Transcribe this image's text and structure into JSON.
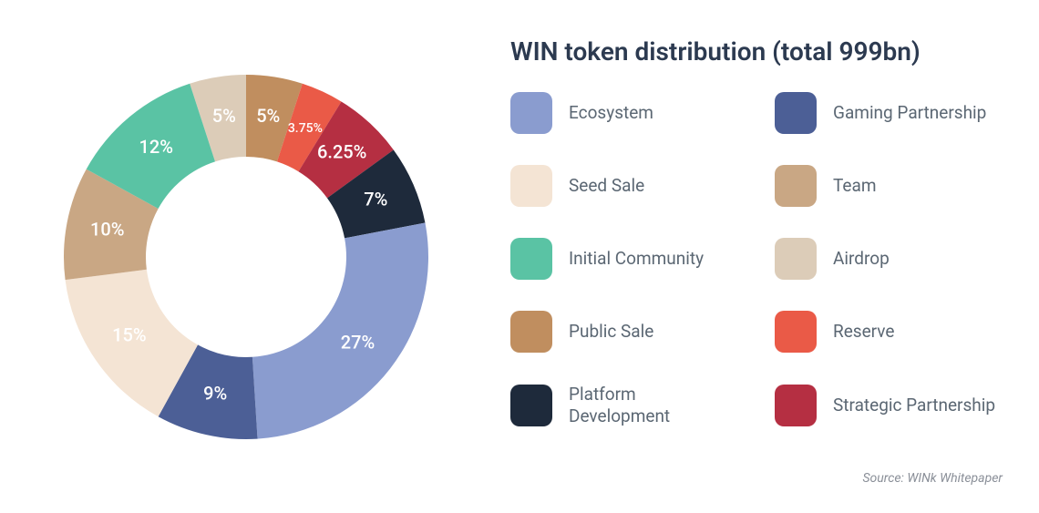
{
  "chart": {
    "type": "donut",
    "title": "WIN token distribution (total 999bn)",
    "title_color": "#2c3a50",
    "title_fontsize": 28,
    "background_color": "#ffffff",
    "outer_radius": 200,
    "inner_radius": 110,
    "label_color": "#ffffff",
    "label_fontsize": 20,
    "slices": [
      {
        "key": "airdrop",
        "value": 5,
        "label": "5%",
        "color": "#dcccb8",
        "label_small": false
      },
      {
        "key": "public_sale",
        "value": 5,
        "label": "5%",
        "color": "#c08e5f",
        "label_small": false
      },
      {
        "key": "reserve",
        "value": 3.75,
        "label": "3.75%",
        "color": "#ea5a47",
        "label_small": true
      },
      {
        "key": "strategic",
        "value": 6.25,
        "label": "6.25%",
        "color": "#b52f42",
        "label_small": false
      },
      {
        "key": "platform_dev",
        "value": 7,
        "label": "7%",
        "color": "#1e2a3b",
        "label_small": false
      },
      {
        "key": "ecosystem",
        "value": 27,
        "label": "27%",
        "color": "#8a9ccf",
        "label_small": false
      },
      {
        "key": "gaming",
        "value": 9,
        "label": "9%",
        "color": "#4c5f96",
        "label_small": false
      },
      {
        "key": "seed_sale",
        "value": 15,
        "label": "15%",
        "color": "#f4e4d4",
        "label_small": false
      },
      {
        "key": "team",
        "value": 10,
        "label": "10%",
        "color": "#c9a784",
        "label_small": false
      },
      {
        "key": "initial_comm",
        "value": 12,
        "label": "12%",
        "color": "#5ac3a4",
        "label_small": false
      }
    ],
    "start_angle_deg": -108
  },
  "legend": {
    "label_color": "#5b6773",
    "label_fontsize": 19,
    "swatch_size": 46,
    "swatch_radius": 10,
    "columns": 2,
    "items_left": [
      {
        "key": "ecosystem",
        "label": "Ecosystem",
        "color": "#8a9ccf"
      },
      {
        "key": "seed_sale",
        "label": "Seed Sale",
        "color": "#f4e4d4"
      },
      {
        "key": "initial_comm",
        "label": "Initial Community",
        "color": "#5ac3a4"
      },
      {
        "key": "public_sale",
        "label": "Public Sale",
        "color": "#c08e5f"
      },
      {
        "key": "platform_dev",
        "label": "Platform Development",
        "color": "#1e2a3b"
      }
    ],
    "items_right": [
      {
        "key": "gaming",
        "label": "Gaming Partnership",
        "color": "#4c5f96"
      },
      {
        "key": "team",
        "label": "Team",
        "color": "#c9a784"
      },
      {
        "key": "airdrop",
        "label": "Airdrop",
        "color": "#dcccb8"
      },
      {
        "key": "reserve",
        "label": "Reserve",
        "color": "#ea5a47"
      },
      {
        "key": "strategic",
        "label": "Strategic Partnership",
        "color": "#b52f42"
      }
    ]
  },
  "source": "Source: WINk Whitepaper",
  "source_color": "#8a8f98",
  "source_fontsize": 14
}
